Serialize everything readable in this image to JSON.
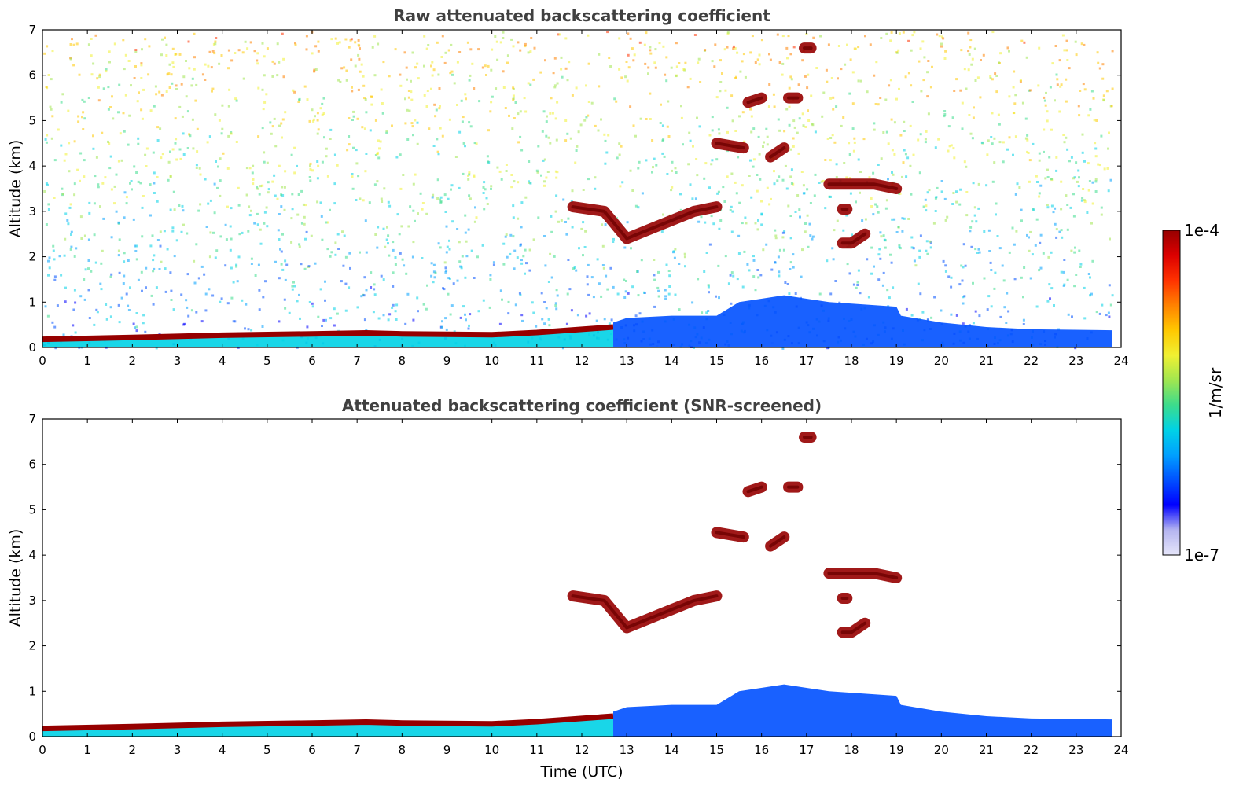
{
  "chart_data": [
    {
      "type": "heatmap",
      "title": "Raw attenuated backscattering coefficient",
      "ylabel": "Altitude (km)",
      "xlabel": "",
      "xlim": [
        0,
        24
      ],
      "ylim": [
        0,
        7
      ],
      "xticks": [
        "0",
        "1",
        "2",
        "3",
        "4",
        "5",
        "6",
        "7",
        "8",
        "9",
        "10",
        "11",
        "12",
        "13",
        "14",
        "15",
        "16",
        "17",
        "18",
        "19",
        "20",
        "21",
        "22",
        "23",
        "24"
      ],
      "yticks": [
        "0",
        "1",
        "2",
        "3",
        "4",
        "5",
        "6",
        "7"
      ],
      "layers": [
        {
          "kind": "background noise",
          "level": 0.45,
          "time": [
            0,
            23.8
          ],
          "altitude": [
            0,
            7
          ]
        },
        {
          "kind": "aerosol layer top",
          "level": 0.98,
          "points": [
            [
              0,
              0.18
            ],
            [
              2,
              0.22
            ],
            [
              4,
              0.27
            ],
            [
              6,
              0.3
            ],
            [
              7.2,
              0.32
            ],
            [
              8,
              0.3
            ],
            [
              10,
              0.28
            ],
            [
              11,
              0.33
            ],
            [
              12,
              0.4
            ],
            [
              12.7,
              0.45
            ]
          ]
        },
        {
          "kind": "boundary layer",
          "level": 0.25,
          "points": [
            [
              12.7,
              0.55
            ],
            [
              13,
              0.65
            ],
            [
              14,
              0.7
            ],
            [
              15,
              0.7
            ],
            [
              15.5,
              1.0
            ],
            [
              16.5,
              1.15
            ],
            [
              17.5,
              1.0
            ],
            [
              19,
              0.9
            ],
            [
              19.1,
              0.7
            ],
            [
              20,
              0.55
            ],
            [
              21,
              0.45
            ],
            [
              22,
              0.4
            ],
            [
              23.8,
              0.38
            ]
          ]
        },
        {
          "kind": "cloud",
          "level": 0.97,
          "points": [
            [
              11.8,
              3.1
            ],
            [
              12.5,
              3.0
            ],
            [
              13,
              2.4
            ],
            [
              13.5,
              2.6
            ],
            [
              14,
              2.8
            ],
            [
              14.5,
              3.0
            ],
            [
              15,
              3.1
            ]
          ]
        },
        {
          "kind": "cloud",
          "level": 0.97,
          "points": [
            [
              15,
              4.5
            ],
            [
              15.6,
              4.4
            ]
          ]
        },
        {
          "kind": "cloud",
          "level": 0.97,
          "points": [
            [
              16.2,
              4.2
            ],
            [
              16.5,
              4.4
            ]
          ]
        },
        {
          "kind": "cloud",
          "level": 0.97,
          "points": [
            [
              15.7,
              5.4
            ],
            [
              16.0,
              5.5
            ]
          ]
        },
        {
          "kind": "cloud",
          "level": 0.97,
          "points": [
            [
              16.6,
              5.5
            ],
            [
              16.8,
              5.5
            ]
          ]
        },
        {
          "kind": "cloud",
          "level": 0.97,
          "points": [
            [
              16.95,
              6.6
            ],
            [
              17.1,
              6.6
            ]
          ]
        },
        {
          "kind": "cloud",
          "level": 0.97,
          "points": [
            [
              17.5,
              3.6
            ],
            [
              18.5,
              3.6
            ],
            [
              19,
              3.5
            ]
          ]
        },
        {
          "kind": "cloud",
          "level": 0.97,
          "points": [
            [
              17.8,
              3.05
            ],
            [
              17.9,
              3.05
            ]
          ]
        },
        {
          "kind": "cloud",
          "level": 0.97,
          "points": [
            [
              17.8,
              2.3
            ],
            [
              18.0,
              2.3
            ],
            [
              18.3,
              2.5
            ]
          ]
        }
      ]
    },
    {
      "type": "heatmap",
      "title": "Attenuated backscattering coefficient (SNR-screened)",
      "ylabel": "Altitude (km)",
      "xlabel": "Time (UTC)",
      "xlim": [
        0,
        24
      ],
      "ylim": [
        0,
        7
      ],
      "xticks": [
        "0",
        "1",
        "2",
        "3",
        "4",
        "5",
        "6",
        "7",
        "8",
        "9",
        "10",
        "11",
        "12",
        "13",
        "14",
        "15",
        "16",
        "17",
        "18",
        "19",
        "20",
        "21",
        "22",
        "23",
        "24"
      ],
      "yticks": [
        "0",
        "1",
        "2",
        "3",
        "4",
        "5",
        "6",
        "7"
      ],
      "layers": [
        {
          "kind": "background noise",
          "level": 0.0,
          "time": [
            0,
            23.8
          ],
          "altitude": [
            0,
            7
          ]
        },
        {
          "kind": "aerosol layer top",
          "level": 1.0,
          "points": [
            [
              0,
              0.18
            ],
            [
              2,
              0.22
            ],
            [
              4,
              0.27
            ],
            [
              6,
              0.3
            ],
            [
              7.2,
              0.32
            ],
            [
              8,
              0.3
            ],
            [
              10,
              0.28
            ],
            [
              11,
              0.33
            ],
            [
              12,
              0.4
            ],
            [
              12.7,
              0.45
            ]
          ]
        },
        {
          "kind": "boundary layer",
          "level": 0.25,
          "points": [
            [
              12.7,
              0.55
            ],
            [
              13,
              0.65
            ],
            [
              14,
              0.7
            ],
            [
              15,
              0.7
            ],
            [
              15.5,
              1.0
            ],
            [
              16.5,
              1.15
            ],
            [
              17.5,
              1.0
            ],
            [
              19,
              0.9
            ],
            [
              19.1,
              0.7
            ],
            [
              20,
              0.55
            ],
            [
              21,
              0.45
            ],
            [
              22,
              0.4
            ],
            [
              23.8,
              0.38
            ]
          ]
        },
        {
          "kind": "cloud",
          "level": 1.0,
          "points": [
            [
              11.8,
              3.1
            ],
            [
              12.5,
              3.0
            ],
            [
              13,
              2.4
            ],
            [
              13.5,
              2.6
            ],
            [
              14,
              2.8
            ],
            [
              14.5,
              3.0
            ],
            [
              15,
              3.1
            ]
          ]
        },
        {
          "kind": "cloud",
          "level": 1.0,
          "points": [
            [
              15,
              4.5
            ],
            [
              15.6,
              4.4
            ]
          ]
        },
        {
          "kind": "cloud",
          "level": 1.0,
          "points": [
            [
              16.2,
              4.2
            ],
            [
              16.5,
              4.4
            ]
          ]
        },
        {
          "kind": "cloud",
          "level": 1.0,
          "points": [
            [
              15.7,
              5.4
            ],
            [
              16.0,
              5.5
            ]
          ]
        },
        {
          "kind": "cloud",
          "level": 1.0,
          "points": [
            [
              16.6,
              5.5
            ],
            [
              16.8,
              5.5
            ]
          ]
        },
        {
          "kind": "cloud",
          "level": 1.0,
          "points": [
            [
              16.95,
              6.6
            ],
            [
              17.1,
              6.6
            ]
          ]
        },
        {
          "kind": "cloud",
          "level": 1.0,
          "points": [
            [
              17.5,
              3.6
            ],
            [
              18.5,
              3.6
            ],
            [
              19,
              3.5
            ]
          ]
        },
        {
          "kind": "cloud",
          "level": 1.0,
          "points": [
            [
              17.8,
              3.05
            ],
            [
              17.9,
              3.05
            ]
          ]
        },
        {
          "kind": "cloud",
          "level": 1.0,
          "points": [
            [
              17.8,
              2.3
            ],
            [
              18.0,
              2.3
            ],
            [
              18.3,
              2.5
            ]
          ]
        }
      ]
    }
  ],
  "colorbar": {
    "label": "1/m/sr",
    "max_label": "1e-4",
    "min_label": "1e-7",
    "scale": "log",
    "colors": [
      "#e6e6fa",
      "#b4b4f0",
      "#0000ff",
      "#0050ff",
      "#00a0ff",
      "#00d2e6",
      "#3cdc8c",
      "#a0e650",
      "#f0f032",
      "#ffc800",
      "#ff8200",
      "#ff3200",
      "#dc0000",
      "#960000"
    ]
  }
}
